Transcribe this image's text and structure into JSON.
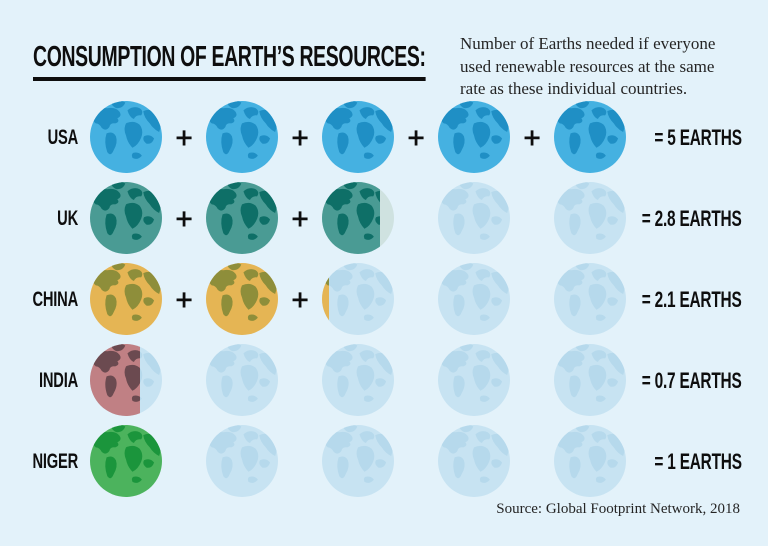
{
  "header": {
    "title": "CONSUMPTION OF EARTH’S RESOURCES:",
    "subtitle": "Number of Earths needed if everyone\nused renewable resources at the same\nrate as these individual countries."
  },
  "footer": {
    "source": "Source: Global Footprint Network, 2018"
  },
  "colors": {
    "background": "#e3f2fa",
    "text": "#0e0e0e",
    "placeholder_water": "#c7e3f2",
    "placeholder_land": "#b6d9ec"
  },
  "chart_data": {
    "type": "bar",
    "style": "pictograph",
    "icon": "earth-globe-icon",
    "max_icons_per_row": 5,
    "title": "CONSUMPTION OF EARTH’S RESOURCES:",
    "subtitle": "Number of Earths needed if everyone used renewable resources at the same rate as these individual countries.",
    "unit": "Earths",
    "plus_symbol": "+",
    "categories": [
      "USA",
      "UK",
      "CHINA",
      "INDIA",
      "NIGER"
    ],
    "values": [
      5,
      2.8,
      2.1,
      0.7,
      1
    ],
    "source": "Source: Global Footprint Network, 2018",
    "rows": [
      {
        "country": "USA",
        "value": 5,
        "value_label": "= 5 EARTHS",
        "water": "#45b1e1",
        "land": "#1f8fc5",
        "fills": [
          1,
          1,
          1,
          1,
          1
        ]
      },
      {
        "country": "UK",
        "value": 2.8,
        "value_label": "= 2.8 EARTHS",
        "water": "#4a9b94",
        "land": "#0e6f67",
        "fills": [
          1,
          1,
          0.8,
          0,
          0
        ],
        "partial_remainder": "#cfe2e0"
      },
      {
        "country": "CHINA",
        "value": 2.1,
        "value_label": "= 2.1 EARTHS",
        "water": "#e5b554",
        "land": "#8e8e3a",
        "fills": [
          1,
          1,
          0.1,
          0,
          0
        ]
      },
      {
        "country": "INDIA",
        "value": 0.7,
        "value_label": "= 0.7 EARTHS",
        "water": "#c08084",
        "land": "#6b4a50",
        "fills": [
          0.7,
          0,
          0,
          0,
          0
        ]
      },
      {
        "country": "NIGER",
        "value": 1,
        "value_label": "= 1 EARTHS",
        "water": "#4cb35d",
        "land": "#1b953c",
        "fills": [
          1,
          0,
          0,
          0,
          0
        ]
      }
    ]
  }
}
